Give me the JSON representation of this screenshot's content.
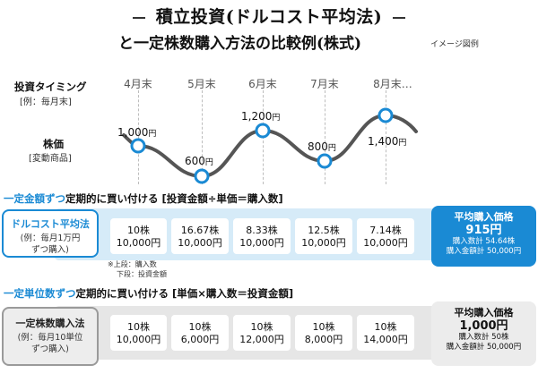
{
  "title": {
    "line1": "積立投資(ドルコスト平均法)",
    "line2": "と一定株数購入方法の比較例(株式)",
    "note": "イメージ図例"
  },
  "left_labels": {
    "timing": "投資タイミング",
    "timing_example": "[例：毎月末]",
    "stock_price": "株価",
    "stock_price_note": "[変動商品]"
  },
  "months": [
    "4月末",
    "5月末",
    "6月末",
    "7月末",
    "8月末…"
  ],
  "chart_data": {
    "type": "line",
    "x": [
      "4月末",
      "5月末",
      "6月末",
      "7月末",
      "8月末"
    ],
    "series": [
      {
        "values": [
          1000,
          600,
          1200,
          800,
          1400
        ]
      }
    ],
    "point_labels": [
      "1,000",
      "600",
      "1,200",
      "800",
      "1,400"
    ],
    "unit": "円"
  },
  "section1": {
    "title_accent": "一定金額ずつ",
    "title_rest": "定期的に買い付ける [投資金額÷単価＝購入数]",
    "method_title": "ドルコスト平均法",
    "method_sub1": "(例：毎月1万円",
    "method_sub2": "ずつ購入)",
    "cells": [
      {
        "qty": "10株",
        "amt": "10,000円"
      },
      {
        "qty": "16.67株",
        "amt": "10,000円"
      },
      {
        "qty": "8.33株",
        "amt": "10,000円"
      },
      {
        "qty": "12.5株",
        "amt": "10,000円"
      },
      {
        "qty": "7.14株",
        "amt": "10,000円"
      }
    ],
    "cell_note1": "※上段：購入数",
    "cell_note2": "下段：投資金額",
    "result_title": "平均購入価格",
    "result_value": "915円",
    "result_line1": "購入数計 54.64株",
    "result_line2": "購入金額計 50,000円"
  },
  "section2": {
    "title_accent": "一定単位数ずつ",
    "title_rest": "定期的に買い付ける [単価×購入数＝投資金額]",
    "method_title": "一定株数購入法",
    "method_sub1": "(例：毎月10単位",
    "method_sub2": "ずつ購入)",
    "cells": [
      {
        "qty": "10株",
        "amt": "10,000円"
      },
      {
        "qty": "10株",
        "amt": "6,000円"
      },
      {
        "qty": "10株",
        "amt": "12,000円"
      },
      {
        "qty": "10株",
        "amt": "8,000円"
      },
      {
        "qty": "10株",
        "amt": "14,000円"
      }
    ],
    "result_title": "平均購入価格",
    "result_value": "1,000円",
    "result_line1": "購入数計 50株",
    "result_line2": "購入金額計 50,000円"
  },
  "colors": {
    "accent_blue": "#1a8ad4",
    "light_blue": "#d6ebf8",
    "gray_band": "#e6e6e6",
    "line_gray": "#555555"
  }
}
